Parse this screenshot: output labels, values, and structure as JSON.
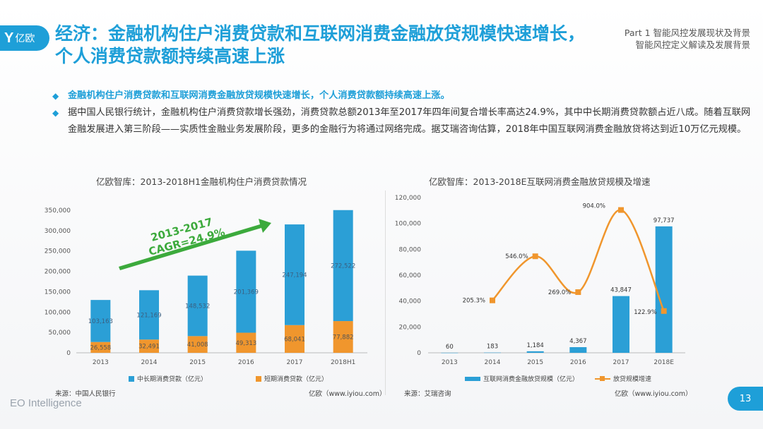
{
  "header": {
    "logo_text": "亿欧",
    "title": "经济：金融机构住户消费贷款和互联网消费金融放贷规模快速增长，个人消费贷款额持续高速上涨",
    "part_line1": "Part 1 智能风控发展现状及背景",
    "part_line2": "智能风控定义解读及发展背景"
  },
  "bullets": [
    "金融机构住户消费贷款和互联网消费金融放贷规模快速增长，个人消费贷款额持续高速上涨。",
    "据中国人民银行统计，金融机构住户消费贷款增长强劲，消费贷款总额2013年至2017年四年间复合增长率高达24.9%，其中中长期消费贷款额占近八成。随着互联网金融发展进入第三阶段——实质性金融业务发展阶段，更多的金融行为将通过网络完成。据艾瑞咨询估算，2018年中国互联网消费金融放贷将达到近10万亿元规模。"
  ],
  "left_chart": {
    "caption": "亿欧智库：2013-2018H1金融机构住户消费贷款情况",
    "source": "来源：中国人民银行",
    "credit": "亿欧（www.iyiou.com）",
    "arrow_text_1": "2013-2017",
    "arrow_text_2": "CAGR=24.9%",
    "colors": {
      "long": "#2b9fd6",
      "short": "#f0962d",
      "arrow": "#3caa3c"
    }
  },
  "right_chart": {
    "caption": "亿欧智库：2013-2018E互联网消费金融放贷规模及增速",
    "source": "来源：艾瑞咨询",
    "credit": "亿欧（www.iyiou.com）",
    "colors": {
      "bar": "#2b9fd6",
      "line": "#f0962d"
    }
  },
  "chart_data": [
    {
      "type": "bar",
      "stacked": true,
      "categories": [
        "2013",
        "2014",
        "2015",
        "2016",
        "2017",
        "2018H1"
      ],
      "series": [
        {
          "name": "中长期消费贷款（亿元）",
          "values": [
            103163,
            121169,
            148532,
            201369,
            247194,
            272522
          ],
          "labels": [
            "103,163",
            "121,169",
            "148,532",
            "201,369",
            "247,194",
            "272,522"
          ]
        },
        {
          "name": "短期消费贷款（亿元）",
          "values": [
            26558,
            32491,
            41008,
            49313,
            68041,
            77882
          ],
          "labels": [
            "26,558",
            "32,491",
            "41,008",
            "49,313",
            "68,041",
            "77,882"
          ]
        }
      ],
      "ylim": [
        0,
        350000
      ],
      "yticks": [
        "0",
        "50,000",
        "100,000",
        "150,000",
        "200,000",
        "250,000",
        "300,000",
        "350,000"
      ],
      "grid": false,
      "legend": "bottom"
    },
    {
      "type": "bar",
      "categories": [
        "2013",
        "2014",
        "2015",
        "2016",
        "2017",
        "2018E"
      ],
      "series": [
        {
          "name": "互联网消费金融放贷规模（亿元）",
          "values": [
            60,
            183,
            1184,
            4367,
            43847,
            97737
          ],
          "labels": [
            "60",
            "183",
            "1,184",
            "4,367",
            "43,847",
            "97,737"
          ]
        },
        {
          "name": "放贷规模增速",
          "type": "line",
          "values": [
            null,
            205.3,
            546.0,
            269.0,
            904.0,
            122.9
          ],
          "labels": [
            "",
            "205.3%",
            "546.0%",
            "269.0%",
            "904.0%",
            "122.9%"
          ]
        }
      ],
      "ylim": [
        0,
        120000
      ],
      "yticks": [
        "0",
        "20,000",
        "40,000",
        "60,000",
        "80,000",
        "100,000",
        "120,000"
      ],
      "y2lim": [
        -200,
        1000
      ],
      "grid": false,
      "legend": "bottom"
    }
  ],
  "footer": {
    "brand": "EO Intelligence",
    "page": "13"
  }
}
